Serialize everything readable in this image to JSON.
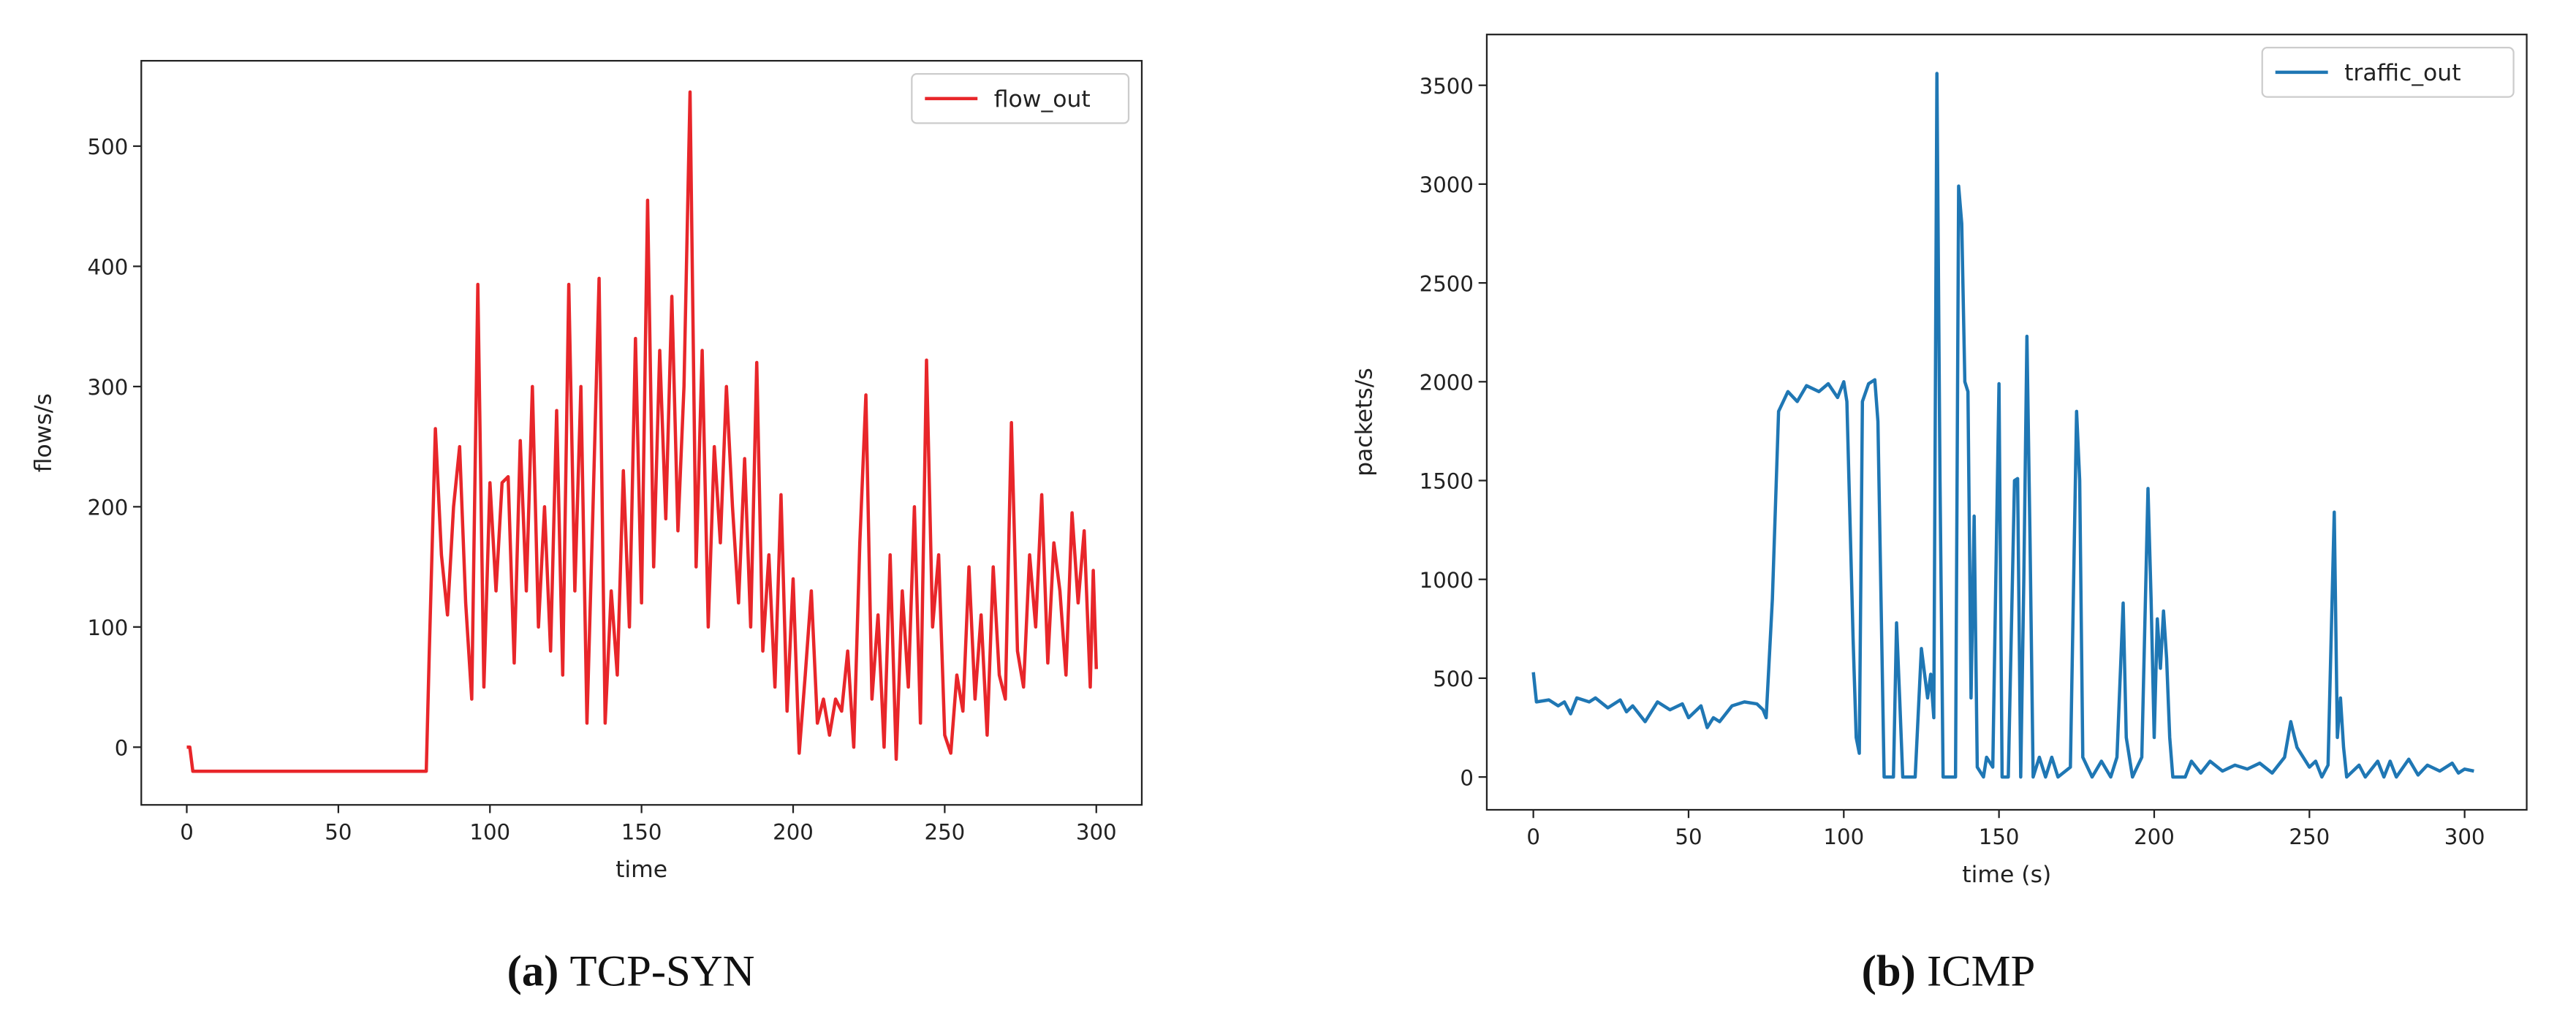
{
  "chart_data": [
    {
      "type": "line",
      "caption_label": "(a)",
      "caption": "TCP-SYN",
      "xlabel": "time",
      "ylabel": "flows/s",
      "xlim": [
        -15,
        315
      ],
      "ylim": [
        -48,
        571
      ],
      "xticks": [
        0,
        50,
        100,
        150,
        200,
        250,
        300
      ],
      "yticks": [
        0,
        100,
        200,
        300,
        400,
        500
      ],
      "grid": false,
      "legend": "upper right",
      "x": [
        0,
        1,
        2,
        79,
        80,
        82,
        84,
        86,
        88,
        90,
        92,
        94,
        96,
        98,
        100,
        102,
        104,
        106,
        108,
        110,
        112,
        114,
        116,
        118,
        120,
        122,
        124,
        126,
        128,
        130,
        132,
        134,
        136,
        138,
        140,
        142,
        144,
        146,
        148,
        150,
        152,
        154,
        156,
        158,
        160,
        162,
        164,
        166,
        168,
        170,
        172,
        174,
        176,
        178,
        180,
        182,
        184,
        186,
        188,
        190,
        192,
        194,
        196,
        198,
        200,
        202,
        204,
        206,
        208,
        210,
        212,
        214,
        216,
        218,
        220,
        222,
        224,
        226,
        228,
        230,
        232,
        234,
        236,
        238,
        240,
        242,
        244,
        246,
        248,
        250,
        252,
        254,
        256,
        258,
        260,
        262,
        264,
        266,
        268,
        270,
        272,
        274,
        276,
        278,
        280,
        282,
        284,
        286,
        288,
        290,
        292,
        294,
        296,
        298,
        299,
        300
      ],
      "series": [
        {
          "name": "flow_out",
          "color": "#e8262a",
          "values": [
            0,
            0,
            -20,
            -20,
            80,
            265,
            160,
            110,
            200,
            250,
            120,
            40,
            385,
            50,
            220,
            130,
            220,
            225,
            70,
            255,
            130,
            300,
            100,
            200,
            80,
            280,
            60,
            385,
            130,
            300,
            20,
            200,
            390,
            20,
            130,
            60,
            230,
            100,
            340,
            120,
            455,
            150,
            330,
            190,
            375,
            180,
            300,
            545,
            150,
            330,
            100,
            250,
            170,
            300,
            200,
            120,
            240,
            100,
            320,
            80,
            160,
            50,
            210,
            30,
            140,
            -5,
            60,
            130,
            20,
            40,
            10,
            40,
            30,
            80,
            0,
            170,
            293,
            40,
            110,
            0,
            160,
            -10,
            130,
            50,
            200,
            20,
            322,
            100,
            160,
            10,
            -5,
            60,
            30,
            150,
            40,
            110,
            10,
            150,
            60,
            40,
            270,
            80,
            50,
            160,
            100,
            210,
            70,
            170,
            130,
            60,
            195,
            120,
            180,
            50,
            147,
            65
          ]
        }
      ]
    },
    {
      "type": "line",
      "caption_label": "(b)",
      "caption": "ICMP",
      "xlabel": "time (s)",
      "ylabel": "packets/s",
      "xlim": [
        -15,
        320
      ],
      "ylim": [
        -166,
        3757
      ],
      "xticks": [
        0,
        50,
        100,
        150,
        200,
        250,
        300
      ],
      "yticks": [
        0,
        500,
        1000,
        1500,
        2000,
        2500,
        3000,
        3500
      ],
      "grid": false,
      "legend": "upper right",
      "x": [
        0,
        1,
        5,
        8,
        10,
        12,
        14,
        18,
        20,
        24,
        28,
        30,
        32,
        36,
        40,
        44,
        48,
        50,
        54,
        56,
        58,
        60,
        64,
        68,
        72,
        74,
        75,
        77,
        79,
        82,
        85,
        88,
        92,
        95,
        98,
        100,
        101,
        103,
        104,
        105,
        106,
        108,
        110,
        111,
        112,
        113,
        116,
        117,
        118,
        119,
        123,
        125,
        127,
        128,
        129,
        130,
        131,
        132,
        136,
        137,
        138,
        139,
        140,
        141,
        142,
        143,
        145,
        146,
        148,
        150,
        151,
        153,
        155,
        156,
        157,
        158,
        159,
        160,
        161,
        163,
        165,
        167,
        169,
        173,
        175,
        176,
        177,
        180,
        183,
        186,
        188,
        190,
        191,
        193,
        196,
        198,
        199,
        200,
        201,
        202,
        203,
        204,
        205,
        206,
        210,
        212,
        215,
        218,
        222,
        226,
        230,
        234,
        238,
        242,
        244,
        246,
        248,
        250,
        252,
        254,
        256,
        258,
        259,
        260,
        261,
        262,
        266,
        268,
        272,
        274,
        276,
        278,
        282,
        285,
        288,
        292,
        296,
        298,
        300,
        303
      ],
      "series": [
        {
          "name": "traffic_out",
          "color": "#1f77b4",
          "values": [
            530,
            380,
            390,
            360,
            380,
            320,
            400,
            380,
            400,
            350,
            390,
            330,
            360,
            280,
            380,
            340,
            370,
            300,
            360,
            250,
            300,
            280,
            360,
            380,
            370,
            340,
            300,
            900,
            1850,
            1950,
            1900,
            1980,
            1950,
            1990,
            1920,
            2000,
            1900,
            700,
            200,
            120,
            1900,
            1990,
            2010,
            1800,
            900,
            0,
            0,
            780,
            400,
            0,
            0,
            650,
            400,
            520,
            300,
            3560,
            1500,
            0,
            0,
            2990,
            2800,
            2000,
            1950,
            400,
            1320,
            50,
            0,
            100,
            50,
            1990,
            0,
            0,
            1500,
            1510,
            0,
            1000,
            2230,
            1200,
            0,
            100,
            0,
            100,
            0,
            50,
            1850,
            1500,
            100,
            0,
            80,
            0,
            100,
            880,
            200,
            0,
            100,
            1460,
            900,
            200,
            800,
            550,
            840,
            600,
            200,
            0,
            0,
            80,
            20,
            80,
            30,
            60,
            40,
            70,
            20,
            100,
            280,
            150,
            100,
            50,
            80,
            0,
            60,
            1340,
            200,
            400,
            150,
            0,
            60,
            0,
            80,
            0,
            80,
            0,
            90,
            10,
            60,
            30,
            70,
            20,
            40,
            30
          ]
        }
      ]
    }
  ]
}
